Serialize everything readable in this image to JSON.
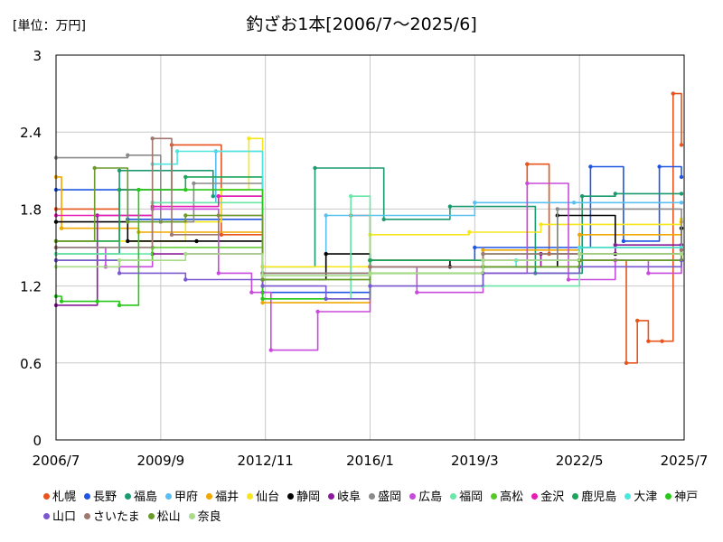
{
  "unit_label": "[単位：万円]",
  "chart_data": {
    "type": "line",
    "title": "釣ざお1本[2006/7〜2025/6]",
    "ylim": [
      0,
      3
    ],
    "y_ticks": [
      "0",
      "0.6",
      "1.2",
      "1.8",
      "2.4",
      "3"
    ],
    "x_ticks": [
      "2006/7",
      "2009/9",
      "2012/11",
      "2016/1",
      "2019/3",
      "2022/5",
      "2025/7"
    ],
    "x_range": [
      "2006-07",
      "2025-07"
    ],
    "grid": true,
    "legend_position": "bottom",
    "series": [
      {
        "name": "札幌",
        "color": "#e8541c",
        "x": [
          "2006-07",
          "2008-06",
          "2010-01",
          "2011-07",
          "2012-10",
          "2015-06",
          "2016-01",
          "2020-10",
          "2021-06",
          "2022-05",
          "2023-10",
          "2024-02",
          "2024-06",
          "2024-11",
          "2025-03",
          "2025-06"
        ],
        "values": [
          1.8,
          1.95,
          2.3,
          1.6,
          1.3,
          1.75,
          1.35,
          2.15,
          1.45,
          1.4,
          0.6,
          0.93,
          0.77,
          0.77,
          2.7,
          2.3
        ]
      },
      {
        "name": "長野",
        "color": "#1f55e0",
        "x": [
          "2006-07",
          "2008-09",
          "2012-10",
          "2016-01",
          "2019-03",
          "2022-09",
          "2023-09",
          "2024-10",
          "2025-06"
        ],
        "values": [
          1.95,
          1.72,
          1.15,
          1.4,
          1.5,
          2.13,
          1.55,
          2.13,
          2.05
        ]
      },
      {
        "name": "福島",
        "color": "#1a9a6e",
        "x": [
          "2006-07",
          "2008-06",
          "2011-04",
          "2012-10",
          "2014-05",
          "2016-06",
          "2018-06",
          "2021-01",
          "2022-06",
          "2023-06",
          "2025-06"
        ],
        "values": [
          1.45,
          2.1,
          1.9,
          1.35,
          2.12,
          1.72,
          1.82,
          1.3,
          1.9,
          1.92,
          1.92
        ]
      },
      {
        "name": "甲府",
        "color": "#58c0f0",
        "x": [
          "2006-07",
          "2009-06",
          "2011-05",
          "2012-10",
          "2014-09",
          "2019-03",
          "2022-03",
          "2025-06"
        ],
        "values": [
          1.4,
          1.85,
          2.25,
          1.3,
          1.75,
          1.85,
          1.85,
          1.85
        ]
      },
      {
        "name": "福井",
        "color": "#f0a800",
        "x": [
          "2006-07",
          "2006-09",
          "2009-01",
          "2012-10",
          "2016-01",
          "2019-06",
          "2022-05",
          "2025-06"
        ],
        "values": [
          2.05,
          1.65,
          1.62,
          1.07,
          1.4,
          1.48,
          1.6,
          1.7
        ]
      },
      {
        "name": "仙台",
        "color": "#f8e61c",
        "x": [
          "2006-07",
          "2010-06",
          "2011-07",
          "2012-05",
          "2012-10",
          "2016-01",
          "2019-01",
          "2021-03",
          "2025-06"
        ],
        "values": [
          1.55,
          1.7,
          1.95,
          2.35,
          1.35,
          1.6,
          1.62,
          1.68,
          1.72
        ]
      },
      {
        "name": "静岡",
        "color": "#000000",
        "x": [
          "2006-07",
          "2008-09",
          "2010-10",
          "2012-10",
          "2014-09",
          "2016-01",
          "2018-06",
          "2021-09",
          "2023-06",
          "2025-06"
        ],
        "values": [
          1.7,
          1.55,
          1.55,
          1.25,
          1.45,
          1.4,
          1.35,
          1.75,
          1.45,
          1.65
        ]
      },
      {
        "name": "岐阜",
        "color": "#8a1a9a",
        "x": [
          "2006-07",
          "2007-10",
          "2009-06",
          "2012-10",
          "2016-01",
          "2021-03",
          "2023-06",
          "2025-06"
        ],
        "values": [
          1.05,
          1.75,
          1.45,
          1.3,
          1.35,
          1.45,
          1.52,
          1.52
        ]
      },
      {
        "name": "盛岡",
        "color": "#8a8a8a",
        "x": [
          "2006-07",
          "2008-09",
          "2009-09",
          "2010-09",
          "2012-10",
          "2016-01",
          "2019-06",
          "2021-09",
          "2025-06"
        ],
        "values": [
          2.2,
          2.22,
          1.7,
          2.0,
          1.3,
          1.35,
          1.4,
          1.8,
          1.45
        ]
      },
      {
        "name": "広島",
        "color": "#c84adc",
        "x": [
          "2006-07",
          "2008-01",
          "2009-06",
          "2011-06",
          "2012-06",
          "2013-01",
          "2014-06",
          "2016-01",
          "2017-06",
          "2019-06",
          "2020-10",
          "2022-01",
          "2023-06",
          "2024-06",
          "2025-06"
        ],
        "values": [
          1.5,
          1.35,
          1.8,
          1.3,
          1.15,
          0.7,
          1.0,
          1.35,
          1.15,
          1.3,
          2.0,
          1.25,
          1.4,
          1.3,
          1.4
        ]
      },
      {
        "name": "福岡",
        "color": "#6ae6a8",
        "x": [
          "2006-07",
          "2009-06",
          "2012-10",
          "2015-06",
          "2016-01",
          "2019-06",
          "2022-05",
          "2025-06"
        ],
        "values": [
          1.45,
          1.85,
          1.1,
          1.9,
          1.3,
          1.2,
          1.4,
          1.45
        ]
      },
      {
        "name": "高松",
        "color": "#58c828",
        "x": [
          "2006-07",
          "2009-06",
          "2012-10",
          "2016-01",
          "2019-06",
          "2022-05",
          "2025-06"
        ],
        "values": [
          1.4,
          1.5,
          1.25,
          1.35,
          1.35,
          1.45,
          1.5
        ]
      },
      {
        "name": "金沢",
        "color": "#e81cb4",
        "x": [
          "2006-07",
          "2009-06",
          "2011-06",
          "2012-10",
          "2016-01",
          "2019-06",
          "2022-05",
          "2025-06"
        ],
        "values": [
          1.75,
          1.82,
          1.9,
          1.3,
          1.35,
          1.4,
          1.4,
          1.5
        ]
      },
      {
        "name": "鹿児島",
        "color": "#1aa55a",
        "x": [
          "2006-07",
          "2008-06",
          "2010-06",
          "2012-10",
          "2016-01",
          "2019-06",
          "2022-05",
          "2025-06"
        ],
        "values": [
          1.55,
          1.95,
          2.05,
          1.3,
          1.4,
          1.45,
          1.5,
          1.48
        ]
      },
      {
        "name": "大津",
        "color": "#4ee6dc",
        "x": [
          "2006-07",
          "2009-06",
          "2010-03",
          "2012-10",
          "2016-01",
          "2020-06",
          "2022-05",
          "2025-06"
        ],
        "values": [
          1.5,
          2.15,
          2.25,
          1.3,
          1.35,
          1.4,
          1.5,
          1.5
        ]
      },
      {
        "name": "神戸",
        "color": "#28c81a",
        "x": [
          "2006-07",
          "2006-09",
          "2007-10",
          "2008-06",
          "2009-01",
          "2010-06",
          "2012-10",
          "2016-01",
          "2019-06",
          "2022-05",
          "2025-06"
        ],
        "values": [
          1.12,
          1.08,
          1.08,
          1.05,
          1.95,
          1.95,
          1.1,
          1.3,
          1.35,
          1.4,
          1.45
        ]
      },
      {
        "name": "山口",
        "color": "#7a58d0",
        "x": [
          "2006-07",
          "2008-06",
          "2010-06",
          "2012-10",
          "2014-09",
          "2016-01",
          "2019-06",
          "2022-05",
          "2025-06"
        ],
        "values": [
          1.4,
          1.3,
          1.25,
          1.2,
          1.1,
          1.2,
          1.3,
          1.35,
          1.4
        ]
      },
      {
        "name": "さいたま",
        "color": "#a07870",
        "x": [
          "2006-07",
          "2009-06",
          "2010-01",
          "2011-06",
          "2012-10",
          "2016-01",
          "2019-06",
          "2022-05",
          "2025-06"
        ],
        "values": [
          1.5,
          2.35,
          1.6,
          1.75,
          1.3,
          1.35,
          1.45,
          1.45,
          1.48
        ]
      },
      {
        "name": "松山",
        "color": "#6a9a28",
        "x": [
          "2006-07",
          "2007-09",
          "2008-09",
          "2010-06",
          "2012-10",
          "2016-01",
          "2019-06",
          "2022-05",
          "2025-06"
        ],
        "values": [
          1.55,
          2.12,
          1.7,
          1.75,
          1.25,
          1.3,
          1.35,
          1.4,
          1.45
        ]
      },
      {
        "name": "奈良",
        "color": "#a8dc88",
        "x": [
          "2006-07",
          "2008-06",
          "2010-06",
          "2012-10",
          "2016-01",
          "2019-06",
          "2022-05",
          "2025-06"
        ],
        "values": [
          1.35,
          1.4,
          1.45,
          1.28,
          1.3,
          1.4,
          1.45,
          1.45
        ]
      }
    ]
  }
}
